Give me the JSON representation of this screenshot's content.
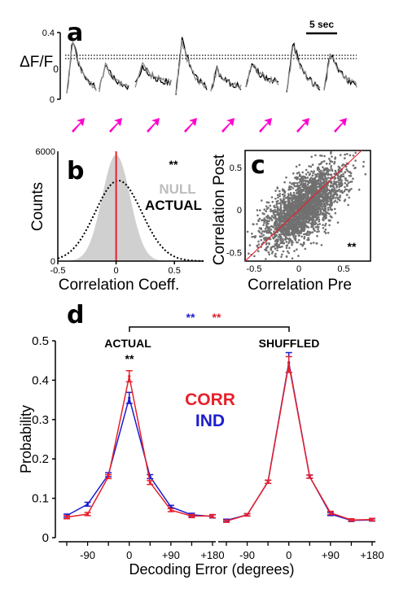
{
  "panels": {
    "a": {
      "letter": "a",
      "ylabel": "ΔF/F",
      "ylabel_sub": "0",
      "yticks": [
        "0.4",
        "0"
      ],
      "scalebar_label": "5 sec",
      "traces": [
        "black",
        "gray"
      ],
      "num_stimuli": 8,
      "stimulus_color": "#ff00cc"
    },
    "b": {
      "letter": "b",
      "significance": "**",
      "legend_null": "NULL",
      "legend_actual": "ACTUAL"
    },
    "c": {
      "letter": "c",
      "significance": "**"
    },
    "d": {
      "letter": "d",
      "label_actual": "ACTUAL",
      "label_shuffled": "SHUFFLED",
      "sig_peak": "**",
      "sig_blue": "**",
      "sig_red": "**",
      "legend_corr": "CORR",
      "legend_ind": "IND"
    }
  },
  "colors": {
    "corr": "#e8202a",
    "ind": "#1d1dd0",
    "null_fill": "#d0d0d0",
    "scatter": "#707070",
    "red_line": "#e8202a"
  },
  "chart_data": [
    {
      "type": "area",
      "panel": "b",
      "xlabel": "Correlation Coeff.",
      "ylabel": "Counts",
      "xlim": [
        -0.5,
        0.75
      ],
      "ylim": [
        0,
        6000
      ],
      "xticks": [
        "-0.5",
        "0",
        "0.5"
      ],
      "yticks": [
        "6000",
        "0"
      ],
      "series": [
        {
          "name": "NULL",
          "kind": "gaussian",
          "mean": 0.0,
          "sd": 0.12,
          "peak": 5800
        },
        {
          "name": "ACTUAL",
          "kind": "gaussian",
          "mean": 0.02,
          "sd": 0.2,
          "peak": 4400
        }
      ],
      "vline_x": 0
    },
    {
      "type": "scatter",
      "panel": "c",
      "xlabel": "Correlation Pre",
      "ylabel": "Correlation Post",
      "xlim": [
        -0.6,
        0.8
      ],
      "ylim": [
        -0.6,
        0.7
      ],
      "xticks": [
        "-0.5",
        "0",
        "0.5"
      ],
      "yticks": [
        "0.5",
        "0",
        "-0.5"
      ],
      "identity_line": true
    },
    {
      "type": "line",
      "panel": "d",
      "xlabel": "Decoding Error (degrees)",
      "ylabel": "Probability",
      "ylim": [
        0,
        0.5
      ],
      "yticks": [
        "0",
        "0.1",
        "0.2",
        "0.3",
        "0.4",
        "0.5"
      ],
      "x_ticks": [
        "-90",
        "0",
        "+90",
        "+180"
      ],
      "x": [
        -135,
        -90,
        -45,
        0,
        45,
        90,
        135,
        180
      ],
      "groups": [
        {
          "name": "ACTUAL",
          "series": [
            {
              "name": "CORR",
              "values": [
                0.052,
                0.06,
                0.155,
                0.41,
                0.14,
                0.07,
                0.055,
                0.055
              ],
              "err": [
                0.004,
                0.004,
                0.005,
                0.014,
                0.005,
                0.004,
                0.004,
                0.004
              ]
            },
            {
              "name": "IND",
              "values": [
                0.056,
                0.085,
                0.16,
                0.355,
                0.155,
                0.078,
                0.058,
                0.054
              ],
              "err": [
                0.004,
                0.005,
                0.005,
                0.014,
                0.005,
                0.004,
                0.004,
                0.004
              ]
            }
          ]
        },
        {
          "name": "SHUFFLED",
          "series": [
            {
              "name": "CORR",
              "values": [
                0.042,
                0.058,
                0.142,
                0.44,
                0.155,
                0.063,
                0.045,
                0.046
              ],
              "err": [
                0.003,
                0.003,
                0.004,
                0.02,
                0.004,
                0.004,
                0.003,
                0.003
              ]
            },
            {
              "name": "IND",
              "values": [
                0.044,
                0.058,
                0.142,
                0.445,
                0.155,
                0.06,
                0.044,
                0.045
              ],
              "err": [
                0.003,
                0.003,
                0.004,
                0.025,
                0.004,
                0.004,
                0.003,
                0.003
              ]
            }
          ]
        }
      ]
    }
  ]
}
